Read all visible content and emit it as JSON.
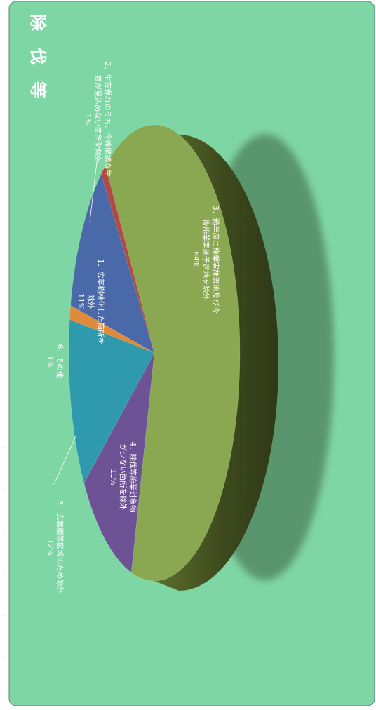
{
  "colors": {
    "background": "#7fd6a5",
    "border": "#5e8a75",
    "title": "#ffffff",
    "leader": "#ffffff"
  },
  "chart_data": {
    "type": "pie",
    "title": "除　伐　等",
    "three_d": true,
    "rotated": "90deg clockwise",
    "slices": [
      {
        "id": 1,
        "label": "1. 広葉樹林化した箇所を除外",
        "lines": [
          "1．広葉樹林化した箇所を",
          "除外"
        ],
        "percent": "11%",
        "value": 11,
        "color": "#4a69a8"
      },
      {
        "id": 2,
        "label": "2. 生育遅れのうち、今後順調な生育が見込めない箇所を除外",
        "lines": [
          "2．生育遅れのうち、今後順調な生",
          "育が見込めない箇所を除外"
        ],
        "percent": "1%",
        "value": 1,
        "color": "#b14a44"
      },
      {
        "id": 3,
        "label": "3. 過年度に施業実施済地及び今後施業実施予定地を除外",
        "lines": [
          "3．過年度に施業実施済地及び今",
          "後施業実施予定地を除外"
        ],
        "percent": "64%",
        "value": 64,
        "color": "#8aa852"
      },
      {
        "id": 4,
        "label": "4. 除伐等施業対象物が少ない箇所を除外",
        "lines": [
          "4．除伐等施業対象物",
          "が少ない箇所を除外"
        ],
        "percent": "11%",
        "value": 11,
        "color": "#6e5296"
      },
      {
        "id": 5,
        "label": "5. 広葉樹等区域のため除外",
        "lines": [
          "5．広葉樹等区域のため除外"
        ],
        "percent": "12%",
        "value": 12,
        "color": "#2f99ad"
      },
      {
        "id": 6,
        "label": "6. その他",
        "lines": [
          "6．その他"
        ],
        "percent": "1%",
        "value": 1,
        "color": "#e08a3c"
      }
    ]
  }
}
